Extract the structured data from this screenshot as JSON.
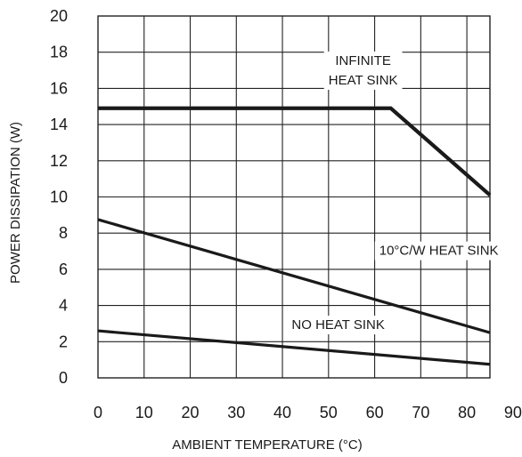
{
  "chart_data": {
    "type": "line",
    "title": "",
    "xlabel": "AMBIENT TEMPERATURE (°C)",
    "ylabel": "POWER DISSIPATION (W)",
    "xlim": [
      0,
      85
    ],
    "ylim": [
      0,
      20
    ],
    "x_ticks": [
      "0",
      "10",
      "20",
      "30",
      "40",
      "50",
      "60",
      "70",
      "80",
      "90"
    ],
    "y_ticks": [
      "0",
      "2",
      "4",
      "6",
      "8",
      "10",
      "12",
      "14",
      "16",
      "18",
      "20"
    ],
    "grid": true,
    "series": [
      {
        "name": "INFINITE HEAT SINK",
        "label_lines": [
          "INFINITE",
          "HEAT SINK"
        ],
        "x": [
          0,
          63.5,
          85
        ],
        "y": [
          14.9,
          14.9,
          10.1
        ],
        "stroke_width": "heavy"
      },
      {
        "name": "10°C/W HEAT SINK",
        "label_lines": [
          "10°C/W HEAT SINK"
        ],
        "x": [
          0,
          85
        ],
        "y": [
          8.75,
          2.5
        ],
        "stroke_width": "medium"
      },
      {
        "name": "NO HEAT SINK",
        "label_lines": [
          "NO HEAT SINK"
        ],
        "x": [
          0,
          85
        ],
        "y": [
          2.6,
          0.75
        ],
        "stroke_width": "medium"
      }
    ],
    "line_color": "#1a1a1a"
  }
}
